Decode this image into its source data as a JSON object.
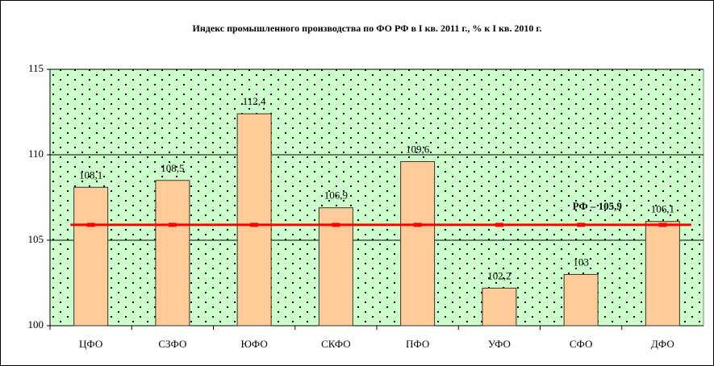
{
  "chart_data": {
    "type": "bar",
    "title": "Индекс промышленного производства по ФО РФ в  I кв. 2011 г., % к I кв. 2010 г.",
    "categories": [
      "ЦФО",
      "СЗФО",
      "ЮФО",
      "СКФО",
      "ПФО",
      "УФО",
      "СФО",
      "ДФО"
    ],
    "values": [
      108.1,
      108.5,
      112.4,
      106.9,
      109.6,
      102.2,
      103,
      106.1
    ],
    "value_labels": [
      "108,1",
      "108,5",
      "112,4",
      "106,9",
      "109,6",
      "102,2",
      "103",
      "106,1"
    ],
    "color": "#ffcc99",
    "ylim": [
      100,
      115
    ],
    "yticks": [
      100,
      105,
      110,
      115
    ],
    "grid": true,
    "reference_line": {
      "value": 105.9,
      "label": "РФ – 105,9",
      "color": "#ff0000"
    }
  }
}
